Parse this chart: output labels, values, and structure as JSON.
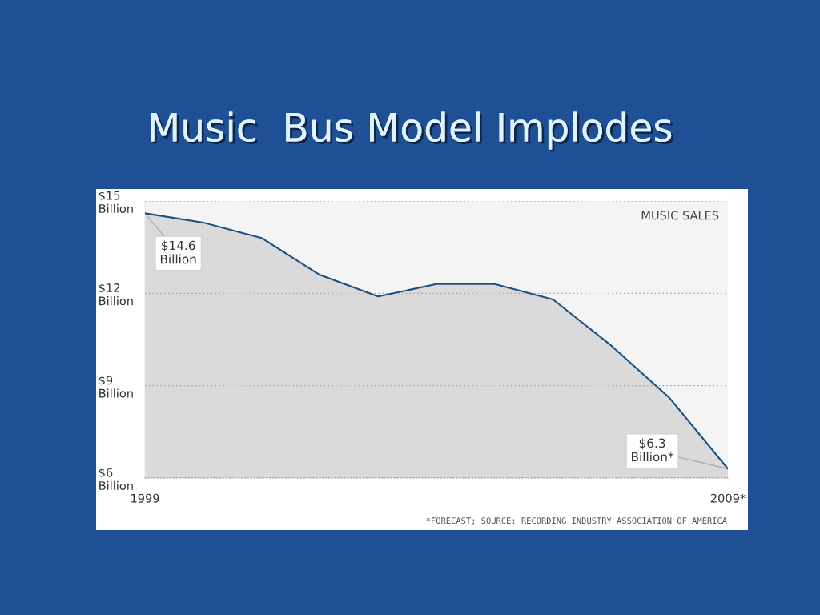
{
  "chart_data": {
    "type": "area",
    "title": "Music  Bus Model Implodes",
    "subtitle": "MUSIC SALES",
    "x": [
      1999,
      2000,
      2001,
      2002,
      2003,
      2004,
      2005,
      2006,
      2007,
      2008,
      2009
    ],
    "series": [
      {
        "color": "#1b4f80",
        "values": [
          14.6,
          14.3,
          13.8,
          12.6,
          11.9,
          12.3,
          12.3,
          11.8,
          10.3,
          8.6,
          6.3
        ]
      }
    ],
    "xlim": [
      1999,
      2009
    ],
    "xticks": [
      1999,
      {
        "value": 2009,
        "label": "2009*"
      }
    ],
    "ylim": [
      6,
      15
    ],
    "yticks": [
      {
        "value": 6,
        "label": "$6\nBillion"
      },
      {
        "value": 9,
        "label": "$9\nBillion"
      },
      {
        "value": 12,
        "label": "$12\nBillion"
      },
      {
        "value": 15,
        "label": "$15\nBillion"
      }
    ],
    "grid": "y",
    "annotations": [
      {
        "text": "$14.6\nBillion",
        "x": 1999,
        "y": 14.6
      },
      {
        "text": "$6.3\nBillion*",
        "x": 2009,
        "y": 6.3
      },
      "*FORECAST; SOURCE: RECORDING INDUSTRY ASSOCIATION OF AMERICA"
    ]
  }
}
